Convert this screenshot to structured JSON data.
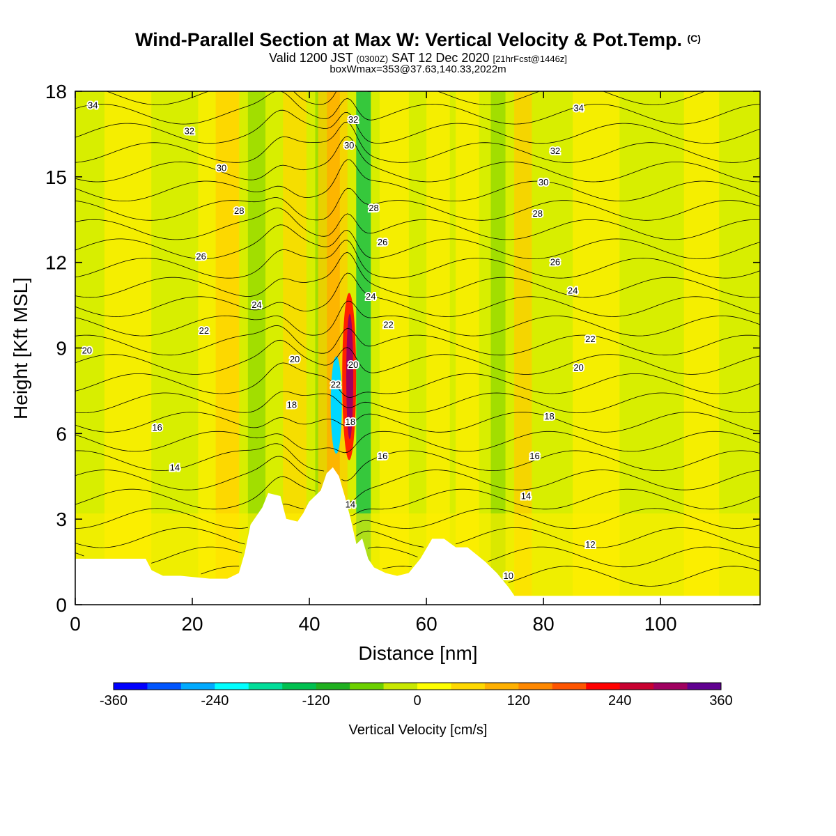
{
  "title": {
    "main": "Wind-Parallel Section at Max W: Vertical Velocity & Pot.Temp.",
    "copyright": "(C)",
    "valid_prefix": "Valid 1200 JST",
    "valid_z": "(0300Z)",
    "valid_date": "SAT 12 Dec 2020",
    "valid_fcst": "[21hrFcst@1446z]",
    "boxmax": "boxWmax=353@37.63,140.33,2022m"
  },
  "chart_data": {
    "type": "heatmap",
    "xlabel": "Distance [nm]",
    "ylabel": "Height [Kft MSL]",
    "xlim": [
      0,
      117
    ],
    "ylim": [
      0,
      18
    ],
    "x_ticks": [
      "0",
      "20",
      "40",
      "60",
      "80",
      "100"
    ],
    "y_ticks": [
      "0",
      "3",
      "6",
      "9",
      "12",
      "15",
      "18"
    ],
    "colorbar": {
      "label": "Vertical Velocity [cm/s]",
      "range": [
        -360,
        360
      ],
      "tick_labels": [
        "-360",
        "-240",
        "-120",
        "0",
        "120",
        "240",
        "360"
      ],
      "colors": [
        "#0000ff",
        "#0055ff",
        "#00aaff",
        "#00ffff",
        "#00dd99",
        "#00c050",
        "#20b020",
        "#6cd000",
        "#c8e800",
        "#ffff00",
        "#ffd800",
        "#ffb000",
        "#ff8800",
        "#ff5500",
        "#ff0000",
        "#c80030",
        "#a00060",
        "#600090"
      ]
    },
    "terrain_profile": {
      "x": [
        0,
        12,
        13,
        15,
        18,
        23,
        26,
        28,
        29,
        30,
        32,
        33,
        35,
        36,
        38,
        39,
        40,
        42,
        43,
        44,
        45,
        46,
        47,
        48,
        49,
        50,
        51,
        53,
        55,
        57,
        59,
        61,
        63,
        65,
        67,
        70,
        72,
        74,
        75,
        117
      ],
      "y": [
        1.6,
        1.6,
        1.2,
        1.0,
        1.0,
        0.9,
        0.9,
        1.1,
        1.8,
        2.8,
        3.4,
        3.9,
        3.8,
        3.0,
        2.9,
        3.2,
        3.6,
        4.0,
        4.6,
        4.8,
        4.5,
        3.8,
        3.0,
        2.1,
        2.3,
        1.6,
        1.3,
        1.1,
        1.0,
        1.1,
        1.6,
        2.3,
        2.3,
        2.0,
        2.0,
        1.5,
        1.1,
        0.6,
        0.3,
        0.3
      ]
    },
    "theta_contours": {
      "units": "C",
      "levels": [
        10,
        12,
        14,
        16,
        18,
        20,
        22,
        24,
        26,
        28,
        30,
        32,
        34
      ],
      "base_height": 1.0,
      "height_per_degree": 0.75,
      "labels": [
        {
          "text": "34",
          "x": 3,
          "y": 17.5
        },
        {
          "text": "32",
          "x": 19.5,
          "y": 16.6
        },
        {
          "text": "30",
          "x": 25,
          "y": 15.3
        },
        {
          "text": "28",
          "x": 28,
          "y": 13.8
        },
        {
          "text": "26",
          "x": 21.5,
          "y": 12.2
        },
        {
          "text": "24",
          "x": 31,
          "y": 10.5
        },
        {
          "text": "22",
          "x": 22,
          "y": 9.6
        },
        {
          "text": "20",
          "x": 2,
          "y": 8.9
        },
        {
          "text": "20",
          "x": 37.5,
          "y": 8.6
        },
        {
          "text": "18",
          "x": 37,
          "y": 7.0
        },
        {
          "text": "16",
          "x": 14,
          "y": 6.2
        },
        {
          "text": "14",
          "x": 17,
          "y": 4.8
        },
        {
          "text": "32",
          "x": 47.5,
          "y": 17.0
        },
        {
          "text": "30",
          "x": 46.8,
          "y": 16.1
        },
        {
          "text": "28",
          "x": 51,
          "y": 13.9
        },
        {
          "text": "26",
          "x": 52.5,
          "y": 12.7
        },
        {
          "text": "24",
          "x": 50.5,
          "y": 10.8
        },
        {
          "text": "22",
          "x": 53.5,
          "y": 9.8
        },
        {
          "text": "22",
          "x": 44.5,
          "y": 7.7
        },
        {
          "text": "20",
          "x": 47.5,
          "y": 8.4
        },
        {
          "text": "18",
          "x": 47,
          "y": 6.4
        },
        {
          "text": "16",
          "x": 52.5,
          "y": 5.2
        },
        {
          "text": "14",
          "x": 47,
          "y": 3.5
        },
        {
          "text": "34",
          "x": 86,
          "y": 17.4
        },
        {
          "text": "32",
          "x": 82,
          "y": 15.9
        },
        {
          "text": "30",
          "x": 80,
          "y": 14.8
        },
        {
          "text": "28",
          "x": 79,
          "y": 13.7
        },
        {
          "text": "26",
          "x": 82,
          "y": 12.0
        },
        {
          "text": "24",
          "x": 85,
          "y": 11.0
        },
        {
          "text": "22",
          "x": 88,
          "y": 9.3
        },
        {
          "text": "20",
          "x": 86,
          "y": 8.3
        },
        {
          "text": "18",
          "x": 81,
          "y": 6.6
        },
        {
          "text": "16",
          "x": 78.5,
          "y": 5.2
        },
        {
          "text": "14",
          "x": 77,
          "y": 3.8
        },
        {
          "text": "12",
          "x": 88,
          "y": 2.1
        },
        {
          "text": "10",
          "x": 74,
          "y": 1.0
        }
      ]
    }
  }
}
